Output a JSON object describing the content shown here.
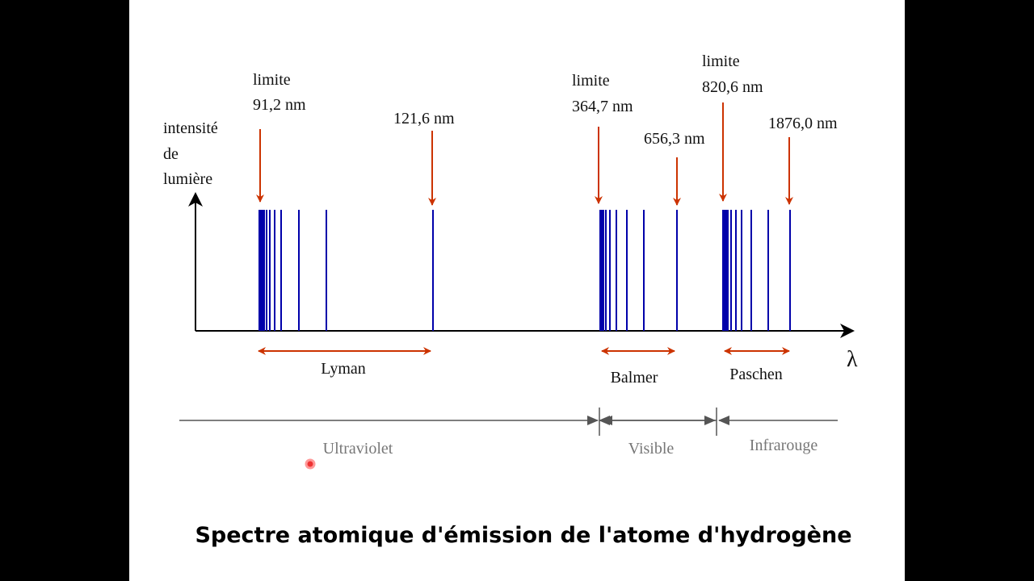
{
  "y_axis_label": [
    "intensité",
    "de",
    "lumière"
  ],
  "x_axis_label": "λ",
  "annotations": [
    {
      "lines": [
        "limite",
        "91,2 nm"
      ]
    },
    {
      "lines": [
        "121,6 nm"
      ]
    },
    {
      "lines": [
        "limite",
        "364,7 nm"
      ]
    },
    {
      "lines": [
        "656,3 nm"
      ]
    },
    {
      "lines": [
        "limite",
        "820,6 nm"
      ]
    },
    {
      "lines": [
        "1876,0 nm"
      ]
    }
  ],
  "series": [
    "Lyman",
    "Balmer",
    "Paschen"
  ],
  "regions": [
    "Ultraviolet",
    "Visible",
    "Infrarouge"
  ],
  "caption": "Spectre atomique d'émission de l'atome d'hydrogène"
}
